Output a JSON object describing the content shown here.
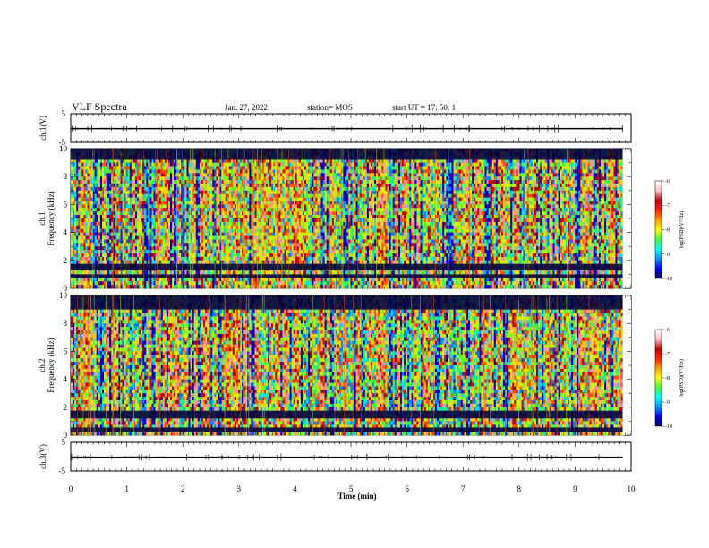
{
  "header": {
    "title": "VLF Spectra",
    "date": "Jan. 27, 2022",
    "station": "station= MOS",
    "start": "start  UT =   17: 50: 1"
  },
  "colors": {
    "spectrum": [
      "#000040",
      "#0000c8",
      "#0080ff",
      "#00e0e0",
      "#40ff40",
      "#c0ff00",
      "#ffd000",
      "#ff5000",
      "#c00000",
      "#ff90a0",
      "#ffffff"
    ],
    "trace": "#000000"
  },
  "chart_data": [
    {
      "type": "line",
      "name": "ch.1 waveform",
      "ylabel": "ch.1(V)",
      "ylim": [
        -5,
        5
      ],
      "yticks": [
        "5",
        "-5"
      ],
      "x": [
        0,
        10
      ],
      "y": [
        -0.2,
        -0.2
      ]
    },
    {
      "type": "heatmap",
      "name": "ch.1 spectrogram",
      "ylabel": "ch.1 Frequency (kHz)",
      "ylabel_lines": [
        "ch.1",
        "Frequency (kHz)"
      ],
      "ylim": [
        0,
        10
      ],
      "yticks": [
        "0",
        "2",
        "4",
        "6",
        "8",
        "10"
      ],
      "xlim": [
        0,
        9.85
      ],
      "colorbar": {
        "label": "log(PSD)(V²/Hz)",
        "min": -10,
        "max": -6,
        "ticks": [
          "-6",
          "-7",
          "-8",
          "-9",
          "-10"
        ]
      },
      "dark_bands_khz": [
        [
          9.2,
          10
        ],
        [
          1.3,
          1.75
        ],
        [
          0.75,
          1.0
        ]
      ]
    },
    {
      "type": "heatmap",
      "name": "ch.2 spectrogram",
      "ylabel": "ch.2 Frequency (kHz)",
      "ylabel_lines": [
        "ch.2",
        "Frequency (kHz)"
      ],
      "ylim": [
        0,
        10
      ],
      "yticks": [
        "0",
        "2",
        "4",
        "6",
        "8",
        "10"
      ],
      "xlim": [
        0,
        9.85
      ],
      "colorbar": {
        "label": "log(PSD)(V²/Hz)",
        "min": -10,
        "max": -6,
        "ticks": [
          "-6",
          "-7",
          "-8",
          "-9",
          "-10"
        ]
      },
      "dark_bands_khz": [
        [
          9.0,
          10
        ],
        [
          1.2,
          1.75
        ],
        [
          0.2,
          0.55
        ]
      ]
    },
    {
      "type": "line",
      "name": "ch.3 waveform",
      "ylabel": "ch.3(V)",
      "ylim": [
        -5,
        5
      ],
      "yticks": [
        "5",
        "-5"
      ],
      "x": [
        0,
        10
      ],
      "y": [
        -0.2,
        -0.2
      ]
    }
  ],
  "xaxis": {
    "label": "Time (min)",
    "range": [
      0,
      10
    ],
    "ticks": [
      "0",
      "1",
      "2",
      "3",
      "4",
      "5",
      "6",
      "7",
      "8",
      "9",
      "10"
    ]
  }
}
